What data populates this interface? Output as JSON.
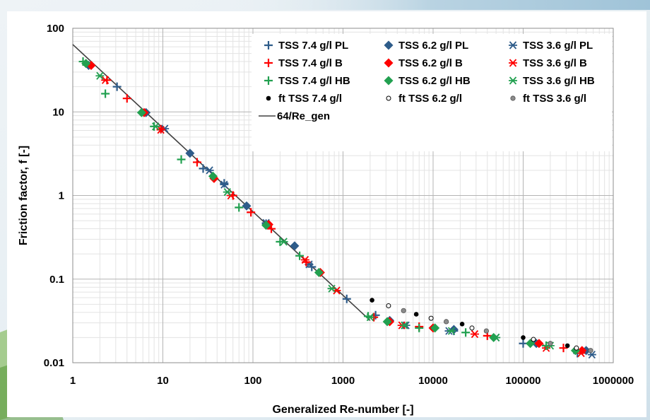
{
  "chart_data": {
    "type": "scatter",
    "title": "",
    "xlabel": "Generalized Re-number [-]",
    "ylabel": "Friction factor, f [-]",
    "x_scale": "log",
    "y_scale": "log",
    "xlim": [
      1,
      1000000
    ],
    "ylim": [
      0.01,
      100
    ],
    "x_ticks": [
      "1",
      "10",
      "100",
      "1000",
      "10000",
      "100000",
      "1000000"
    ],
    "y_ticks": [
      "0.01",
      "0.1",
      "1",
      "10",
      "100"
    ],
    "grid": "major and minor",
    "legend_position": "top-right inside plot",
    "series": [
      {
        "name": "TSS 7.4 g/l PL",
        "marker": "plus",
        "color": "#2e5c8a",
        "x": [
          3.1,
          28,
          48,
          140,
          450,
          1100,
          2300,
          17000,
          100000,
          400000
        ],
        "y": [
          20,
          2.1,
          1.4,
          0.46,
          0.14,
          0.058,
          0.037,
          0.024,
          0.017,
          0.013
        ]
      },
      {
        "name": "TSS 6.2 g/l PL",
        "marker": "diamond",
        "color": "#2e5c8a",
        "x": [
          1.5,
          6.5,
          20,
          85,
          290,
          3300,
          17000,
          140000,
          500000
        ],
        "y": [
          36,
          9.8,
          3.2,
          0.75,
          0.25,
          0.032,
          0.025,
          0.017,
          0.014
        ]
      },
      {
        "name": "TSS 3.6 g/l PL",
        "marker": "asterisk",
        "color": "#2e5c8a",
        "x": [
          10.5,
          33,
          48,
          140,
          420,
          5000,
          15000,
          50000,
          580000
        ],
        "y": [
          6.3,
          2.0,
          1.35,
          0.47,
          0.15,
          0.028,
          0.024,
          0.02,
          0.0125
        ]
      },
      {
        "name": "TSS 7.4 g/l B",
        "marker": "plus",
        "color": "#ff0000",
        "x": [
          2.4,
          4,
          9.5,
          24,
          60,
          95,
          160,
          390,
          2200,
          7000,
          40000,
          280000
        ],
        "y": [
          24,
          14.5,
          6.2,
          2.5,
          1.0,
          0.63,
          0.4,
          0.16,
          0.035,
          0.027,
          0.021,
          0.015
        ]
      },
      {
        "name": "TSS 6.2 g/l B",
        "marker": "diamond",
        "color": "#ff0000",
        "x": [
          1.6,
          6.2,
          37,
          150,
          560,
          3300,
          10000,
          150000,
          450000
        ],
        "y": [
          36,
          9.8,
          1.6,
          0.45,
          0.12,
          0.031,
          0.026,
          0.017,
          0.014
        ]
      },
      {
        "name": "TSS 3.6 g/l B",
        "marker": "asterisk",
        "color": "#ff0000",
        "x": [
          2.3,
          9.5,
          57,
          380,
          850,
          4500,
          29000,
          180000,
          440000
        ],
        "y": [
          24,
          6.1,
          1.0,
          0.17,
          0.073,
          0.028,
          0.022,
          0.015,
          0.013
        ]
      },
      {
        "name": "TSS 7.4 g/l HB",
        "marker": "plus",
        "color": "#22a050",
        "x": [
          1.3,
          2.3,
          8,
          16,
          70,
          200,
          330,
          1900,
          7000,
          23000,
          180000
        ],
        "y": [
          40,
          16.5,
          6.7,
          2.7,
          0.72,
          0.28,
          0.19,
          0.036,
          0.026,
          0.023,
          0.016
        ]
      },
      {
        "name": "TSS 6.2 g/l HB",
        "marker": "diamond",
        "color": "#22a050",
        "x": [
          1.4,
          5.8,
          36,
          140,
          540,
          3100,
          10500,
          47000,
          120000,
          380000
        ],
        "y": [
          38,
          9.8,
          1.7,
          0.44,
          0.12,
          0.031,
          0.026,
          0.02,
          0.017,
          0.014
        ]
      },
      {
        "name": "TSS 3.6 g/l HB",
        "marker": "asterisk",
        "color": "#22a050",
        "x": [
          2.0,
          8.3,
          52,
          220,
          750,
          2000,
          4800,
          16000,
          50000,
          200000
        ],
        "y": [
          27,
          6.7,
          1.1,
          0.28,
          0.077,
          0.035,
          0.028,
          0.024,
          0.02,
          0.016
        ]
      },
      {
        "name": "ft TSS 7.4 g/l",
        "marker": "dot-black",
        "color": "#000000",
        "x": [
          2100,
          6500,
          21000,
          100000,
          310000
        ],
        "y": [
          0.056,
          0.038,
          0.029,
          0.02,
          0.016
        ]
      },
      {
        "name": "ft TSS 6.2 g/l",
        "marker": "dot-open",
        "color": "#000000",
        "x": [
          3200,
          9500,
          27000,
          130000,
          390000
        ],
        "y": [
          0.048,
          0.034,
          0.026,
          0.019,
          0.015
        ]
      },
      {
        "name": "ft TSS 3.6 g/l",
        "marker": "dot-grey",
        "color": "#808080",
        "x": [
          4700,
          14000,
          39000,
          200000,
          560000
        ],
        "y": [
          0.042,
          0.031,
          0.024,
          0.017,
          0.014
        ]
      }
    ],
    "line": {
      "name": "64/Re_gen",
      "color": "#404040",
      "x": [
        1,
        2000
      ],
      "y": [
        64,
        0.032
      ]
    }
  }
}
